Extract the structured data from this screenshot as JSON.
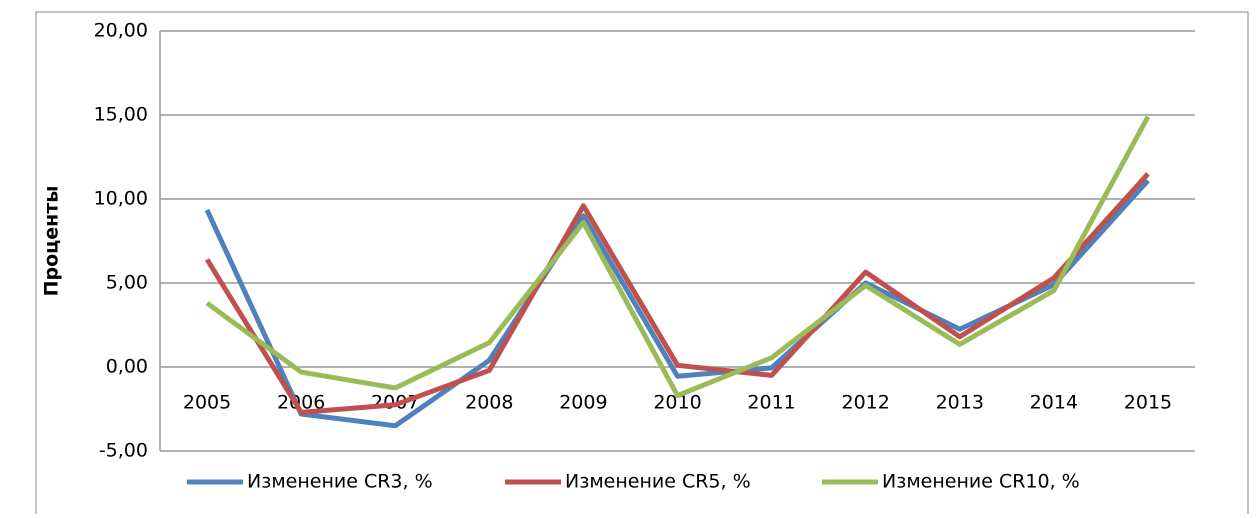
{
  "chart_data": {
    "type": "line",
    "ylabel": "Проценты",
    "categories": [
      "2005",
      "2006",
      "2007",
      "2008",
      "2009",
      "2010",
      "2011",
      "2012",
      "2013",
      "2014",
      "2015"
    ],
    "series": [
      {
        "name": "Изменение CR3, %",
        "color": "#4f81bd",
        "values": [
          9.35,
          -2.8,
          -3.5,
          0.4,
          9.0,
          -0.55,
          -0.05,
          5.0,
          2.25,
          4.9,
          11.1
        ]
      },
      {
        "name": "Изменение CR5, %",
        "color": "#c0504d",
        "values": [
          6.4,
          -2.7,
          -2.25,
          -0.2,
          9.6,
          0.1,
          -0.5,
          5.65,
          1.8,
          5.3,
          11.5
        ]
      },
      {
        "name": "Изменение CR10, %",
        "color": "#9bbb59",
        "values": [
          3.8,
          -0.3,
          -1.25,
          1.45,
          8.6,
          -1.7,
          0.55,
          4.85,
          1.35,
          4.55,
          14.9
        ]
      }
    ],
    "ylim": [
      -5,
      20
    ],
    "yticks": [
      {
        "value": -5,
        "label": "-5,00"
      },
      {
        "value": 0,
        "label": "0,00"
      },
      {
        "value": 5,
        "label": "5,00"
      },
      {
        "value": 10,
        "label": "10,00"
      },
      {
        "value": 15,
        "label": "15,00"
      },
      {
        "value": 20,
        "label": "20,00"
      }
    ],
    "grid": true,
    "legend": "bottom"
  }
}
